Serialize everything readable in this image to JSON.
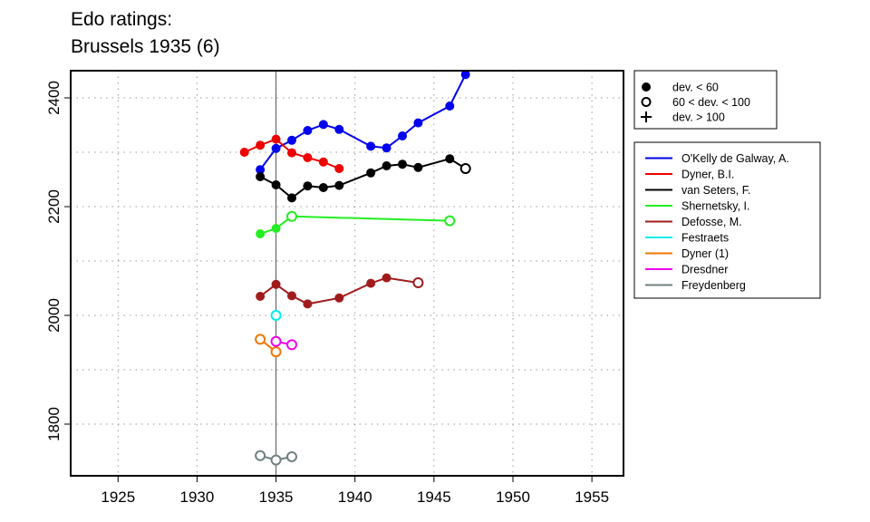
{
  "chart_data": {
    "type": "line",
    "title": "Edo ratings:",
    "subtitle": "Brussels 1935 (6)",
    "xlabel": "",
    "ylabel": "",
    "xlim": [
      1922,
      1957
    ],
    "ylim": [
      1705,
      2450
    ],
    "x_ticks": [
      1925,
      1930,
      1935,
      1940,
      1945,
      1950,
      1955
    ],
    "y_ticks": [
      1800,
      2000,
      2200,
      2400
    ],
    "grid": true,
    "reference_line_x": 1935,
    "marker_legend": [
      {
        "symbol": "filled-circle",
        "label": "dev. < 60"
      },
      {
        "symbol": "open-circle",
        "label": "60 < dev. < 100"
      },
      {
        "symbol": "plus",
        "label": "dev. > 100"
      }
    ],
    "series": [
      {
        "name": "O'Kelly de Galway, A.",
        "color": "#0000ee",
        "points": [
          [
            1934,
            2268,
            "f"
          ],
          [
            1935,
            2307,
            "f"
          ],
          [
            1936,
            2322,
            "f"
          ],
          [
            1937,
            2340,
            "f"
          ],
          [
            1938,
            2351,
            "f"
          ],
          [
            1939,
            2342,
            "f"
          ],
          [
            1941,
            2311,
            "f"
          ],
          [
            1942,
            2308,
            "f"
          ],
          [
            1943,
            2330,
            "f"
          ],
          [
            1944,
            2354,
            "f"
          ],
          [
            1946,
            2385,
            "f"
          ],
          [
            1947,
            2443,
            "f"
          ]
        ]
      },
      {
        "name": "Dyner, B.I.",
        "color": "#ee0000",
        "points": [
          [
            1933,
            2300,
            "f"
          ],
          [
            1934,
            2313,
            "f"
          ],
          [
            1935,
            2324,
            "f"
          ],
          [
            1936,
            2299,
            "f"
          ],
          [
            1937,
            2290,
            "f"
          ],
          [
            1938,
            2282,
            "f"
          ],
          [
            1939,
            2270,
            "f"
          ]
        ]
      },
      {
        "name": "van Seters, F.",
        "color": "#000000",
        "points": [
          [
            1934,
            2255,
            "f"
          ],
          [
            1935,
            2240,
            "f"
          ],
          [
            1936,
            2216,
            "f"
          ],
          [
            1937,
            2238,
            "f"
          ],
          [
            1938,
            2235,
            "f"
          ],
          [
            1939,
            2239,
            "f"
          ],
          [
            1941,
            2262,
            "f"
          ],
          [
            1942,
            2275,
            "f"
          ],
          [
            1943,
            2278,
            "f"
          ],
          [
            1944,
            2272,
            "f"
          ],
          [
            1946,
            2288,
            "f"
          ],
          [
            1947,
            2270,
            "o"
          ]
        ]
      },
      {
        "name": "Shernetsky, I.",
        "color": "#22ee22",
        "points": [
          [
            1934,
            2150,
            "f"
          ],
          [
            1935,
            2160,
            "f"
          ],
          [
            1936,
            2182,
            "o"
          ],
          [
            1946,
            2174,
            "o"
          ]
        ]
      },
      {
        "name": "Defosse, M.",
        "color": "#a01c1c",
        "points": [
          [
            1934,
            2035,
            "f"
          ],
          [
            1935,
            2057,
            "f"
          ],
          [
            1936,
            2036,
            "f"
          ],
          [
            1937,
            2021,
            "f"
          ],
          [
            1939,
            2032,
            "f"
          ],
          [
            1941,
            2059,
            "f"
          ],
          [
            1942,
            2069,
            "f"
          ],
          [
            1944,
            2060,
            "o"
          ]
        ]
      },
      {
        "name": "Festraets",
        "color": "#00eeee",
        "points": [
          [
            1935,
            2000,
            "o"
          ]
        ]
      },
      {
        "name": "Dyner (1)",
        "color": "#ee7700",
        "points": [
          [
            1934,
            1956,
            "o"
          ],
          [
            1935,
            1933,
            "o"
          ]
        ]
      },
      {
        "name": "Dresdner",
        "color": "#ee00ee",
        "points": [
          [
            1935,
            1952,
            "o"
          ],
          [
            1936,
            1946,
            "o"
          ]
        ]
      },
      {
        "name": "Freydenberg",
        "color": "#708080",
        "points": [
          [
            1934,
            1742,
            "o"
          ],
          [
            1935,
            1734,
            "o"
          ],
          [
            1936,
            1740,
            "o"
          ]
        ]
      }
    ]
  }
}
